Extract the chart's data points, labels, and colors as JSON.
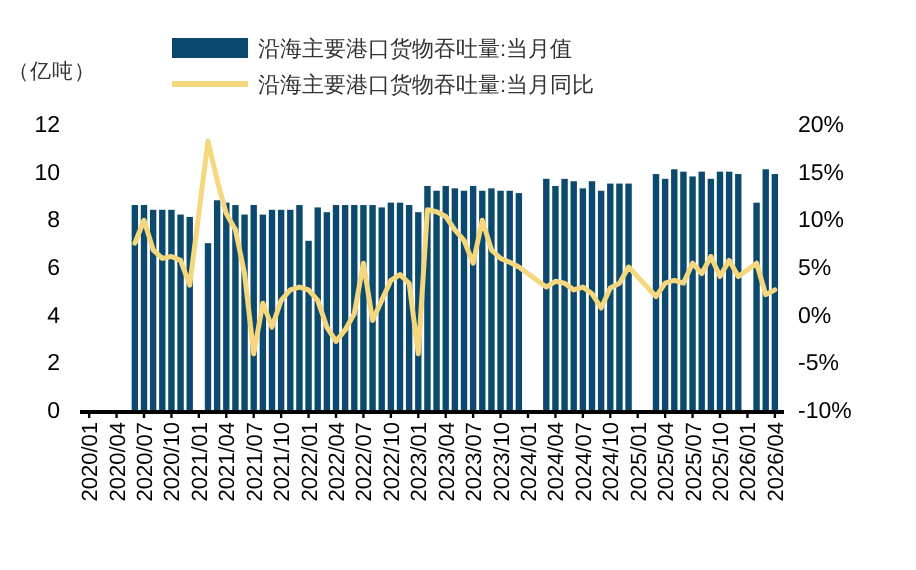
{
  "chart_data": {
    "type": "bar",
    "ylabel": "（亿吨）",
    "legend": "top",
    "x": [
      "2020-06",
      "2020-07",
      "2020-08",
      "2020-09",
      "2020-10",
      "2020-11",
      "2020-12",
      "2021-01",
      "2021-02",
      "2021-03",
      "2021-04",
      "2021-05",
      "2021-06",
      "2021-07",
      "2021-08",
      "2021-09",
      "2021-10",
      "2021-11",
      "2021-12",
      "2022-01",
      "2022-02",
      "2022-03",
      "2022-04",
      "2022-05",
      "2022-06",
      "2022-07",
      "2022-08",
      "2022-09",
      "2022-10",
      "2022-11",
      "2022-12",
      "2023-01",
      "2023-02",
      "2023-03",
      "2023-04",
      "2023-05",
      "2023-06",
      "2023-07",
      "2023-08",
      "2023-09",
      "2023-10",
      "2023-11",
      "2023-12",
      "2024-01",
      "2024-02",
      "2024-03",
      "2024-04",
      "2024-05",
      "2024-06",
      "2024-07",
      "2024-08",
      "2024-09",
      "2024-10",
      "2024-11",
      "2024-12",
      "2025-01",
      "2025-02",
      "2025-03",
      "2025-04",
      "2025-05",
      "2025-06",
      "2025-07",
      "2025-08",
      "2025-09",
      "2025-10",
      "2025-11",
      "2025-12",
      "2026-01",
      "2026-02",
      "2026-03",
      "2026-04"
    ],
    "series": [
      {
        "name": "沿海主要港口货物吞吐量:当月值",
        "color": "#0b4a6e",
        "values": [
          8.6,
          8.6,
          8.4,
          8.4,
          8.4,
          8.2,
          8.1,
          null,
          7.0,
          8.8,
          8.7,
          8.6,
          8.2,
          8.6,
          8.2,
          8.4,
          8.4,
          8.4,
          8.6,
          7.1,
          8.5,
          8.3,
          8.6,
          8.6,
          8.6,
          8.6,
          8.6,
          8.5,
          8.7,
          8.7,
          8.6,
          8.3,
          9.4,
          9.2,
          9.4,
          9.3,
          9.2,
          9.4,
          9.2,
          9.3,
          9.2,
          9.2,
          9.1,
          null,
          null,
          9.7,
          9.4,
          9.7,
          9.6,
          9.3,
          9.6,
          9.2,
          9.5,
          9.5,
          9.5,
          null,
          null,
          9.9,
          9.7,
          10.1,
          10.0,
          9.8,
          10.0,
          9.7,
          10.0,
          10.0,
          9.9,
          null,
          8.7,
          10.1,
          9.9
        ]
      },
      {
        "name": "沿海主要港口货物吞吐量:当月同比",
        "type": "line",
        "axis": "y2",
        "color": "#f5d77e",
        "values": [
          7.5,
          9.9,
          6.8,
          5.9,
          6.1,
          5.7,
          3.1,
          null,
          18.2,
          14.1,
          10.6,
          8.9,
          4.3,
          -4.1,
          1.2,
          -1.3,
          1.5,
          2.6,
          2.9,
          2.6,
          1.5,
          -1.3,
          -2.8,
          -1.6,
          0.1,
          5.4,
          -0.6,
          1.5,
          3.6,
          4.2,
          3.3,
          -4.1,
          11.0,
          10.8,
          10.3,
          8.9,
          7.8,
          5.4,
          9.9,
          6.8,
          5.9,
          5.5,
          5.0,
          null,
          null,
          2.9,
          3.5,
          3.3,
          2.6,
          2.9,
          2.2,
          0.7,
          2.8,
          3.3,
          5.0,
          null,
          null,
          1.9,
          3.3,
          3.6,
          3.3,
          5.4,
          4.3,
          6.1,
          4.0,
          5.7,
          4.0,
          null,
          5.4,
          2.1,
          2.6
        ]
      }
    ],
    "xlim": [
      "2019-12",
      "2026-05"
    ],
    "xticks": [
      {
        "value": "2020-01",
        "label": "2020/01"
      },
      {
        "value": "2020-04",
        "label": "2020/04"
      },
      {
        "value": "2020-07",
        "label": "2020/07"
      },
      {
        "value": "2020-10",
        "label": "2020/10"
      },
      {
        "value": "2021-01",
        "label": "2021/01"
      },
      {
        "value": "2021-04",
        "label": "2021/04"
      },
      {
        "value": "2021-07",
        "label": "2021/07"
      },
      {
        "value": "2021-10",
        "label": "2021/10"
      },
      {
        "value": "2022-01",
        "label": "2022/01"
      },
      {
        "value": "2022-04",
        "label": "2022/04"
      },
      {
        "value": "2022-07",
        "label": "2022/07"
      },
      {
        "value": "2022-10",
        "label": "2022/10"
      },
      {
        "value": "2023-01",
        "label": "2023/01"
      },
      {
        "value": "2023-04",
        "label": "2023/04"
      },
      {
        "value": "2023-07",
        "label": "2023/07"
      },
      {
        "value": "2023-10",
        "label": "2023/10"
      },
      {
        "value": "2024-01",
        "label": "2024/01"
      },
      {
        "value": "2024-04",
        "label": "2024/04"
      },
      {
        "value": "2024-07",
        "label": "2024/07"
      },
      {
        "value": "2024-10",
        "label": "2024/10"
      },
      {
        "value": "2025-01",
        "label": "2025/01"
      },
      {
        "value": "2025-04",
        "label": "2025/04"
      },
      {
        "value": "2025-07",
        "label": "2025/07"
      },
      {
        "value": "2025-10",
        "label": "2025/10"
      },
      {
        "value": "2026-01",
        "label": "2026/01"
      },
      {
        "value": "2026-04",
        "label": "2026/04"
      }
    ],
    "ylim": [
      0,
      12
    ],
    "yticks": [
      0,
      2,
      4,
      6,
      8,
      10,
      12
    ],
    "y2lim": [
      -10,
      20
    ],
    "y2ticks": [
      {
        "value": -10,
        "label": "-10%"
      },
      {
        "value": -5,
        "label": "-5%"
      },
      {
        "value": 0,
        "label": "0%"
      },
      {
        "value": 5,
        "label": "5%"
      },
      {
        "value": 10,
        "label": "10%"
      },
      {
        "value": 15,
        "label": "15%"
      },
      {
        "value": 20,
        "label": "20%"
      }
    ]
  }
}
